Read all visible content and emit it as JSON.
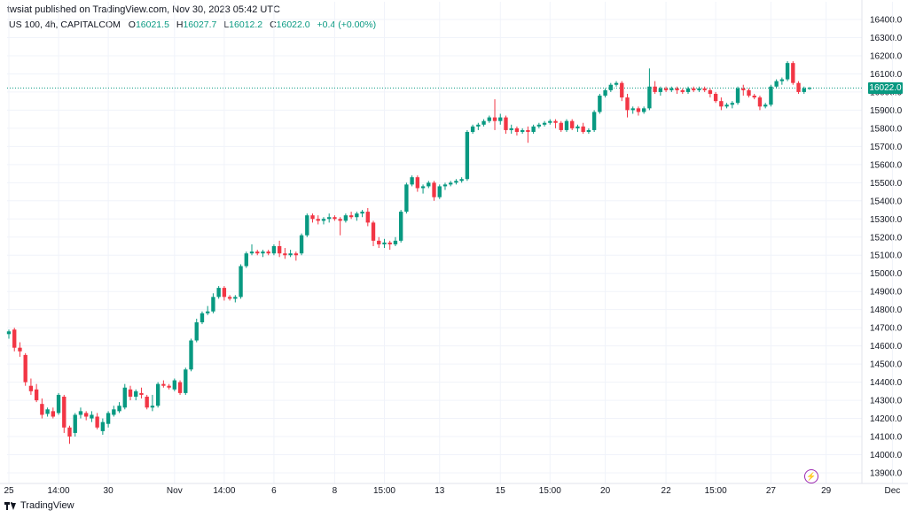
{
  "header": {
    "published": "twsiat published on TradingView.com, Nov 30, 2023 05:42 UTC"
  },
  "legend": {
    "symbol": "US 100, 4h, CAPITALCOM",
    "o_label": "O",
    "o_value": "16021.5",
    "h_label": "H",
    "h_value": "16027.7",
    "l_label": "L",
    "l_value": "16012.2",
    "c_label": "C",
    "c_value": "16022.0",
    "change": "+0.4 (+0.00%)"
  },
  "price_tag": "16022.0",
  "footer": {
    "brand": "TradingView",
    "flash_icon": "lightning-icon"
  },
  "colors": {
    "up": "#089981",
    "down": "#f23645",
    "grid": "#f0f3fa",
    "axis_text": "#131722"
  },
  "chart_data": {
    "type": "candlestick",
    "y_axis": {
      "min": 13850,
      "max": 16450,
      "ticks": [
        16400,
        16300,
        16200,
        16100,
        16000,
        15900,
        15800,
        15700,
        15600,
        15500,
        15400,
        15300,
        15200,
        15100,
        15000,
        14900,
        14800,
        14700,
        14600,
        14500,
        14400,
        14300,
        14200,
        14100,
        14000,
        13900
      ],
      "tick_labels": [
        "16400.0",
        "16300.0",
        "16200.0",
        "16100.0",
        "16000.0",
        "15900.0",
        "15800.0",
        "15700.0",
        "15600.0",
        "15500.0",
        "15400.0",
        "15300.0",
        "15200.0",
        "15100.0",
        "15000.0",
        "14900.0",
        "14800.0",
        "14700.0",
        "14600.0",
        "14500.0",
        "14400.0",
        "14300.0",
        "14200.0",
        "14100.0",
        "14000.0",
        "13900.0"
      ],
      "position": "right"
    },
    "x_axis": {
      "labels": [
        "25",
        "14:00",
        "30",
        "Nov",
        "14:00",
        "6",
        "8",
        "15:00",
        "13",
        "15",
        "15:00",
        "20",
        "22",
        "15:00",
        "27",
        "29",
        "Dec"
      ],
      "label_bar_index": [
        0,
        9,
        18,
        30,
        39,
        48,
        59,
        68,
        78,
        89,
        98,
        108,
        119,
        128,
        138,
        148,
        160
      ]
    },
    "last_price": 16022.0,
    "grid": true,
    "candles": [
      [
        14665,
        14690,
        14640,
        14680
      ],
      [
        14690,
        14700,
        14570,
        14590
      ],
      [
        14590,
        14620,
        14540,
        14570
      ],
      [
        14550,
        14560,
        14380,
        14400
      ],
      [
        14380,
        14420,
        14330,
        14350
      ],
      [
        14360,
        14390,
        14290,
        14300
      ],
      [
        14280,
        14310,
        14200,
        14220
      ],
      [
        14225,
        14260,
        14210,
        14250
      ],
      [
        14240,
        14260,
        14200,
        14210
      ],
      [
        14230,
        14340,
        14220,
        14330
      ],
      [
        14320,
        14330,
        14120,
        14150
      ],
      [
        14150,
        14160,
        14060,
        14100
      ],
      [
        14120,
        14230,
        14100,
        14220
      ],
      [
        14220,
        14260,
        14200,
        14240
      ],
      [
        14230,
        14240,
        14190,
        14210
      ],
      [
        14200,
        14240,
        14180,
        14220
      ],
      [
        14210,
        14230,
        14140,
        14150
      ],
      [
        14130,
        14200,
        14110,
        14180
      ],
      [
        14170,
        14240,
        14150,
        14230
      ],
      [
        14220,
        14270,
        14210,
        14250
      ],
      [
        14240,
        14290,
        14230,
        14270
      ],
      [
        14260,
        14390,
        14250,
        14370
      ],
      [
        14360,
        14380,
        14300,
        14320
      ],
      [
        14320,
        14360,
        14300,
        14350
      ],
      [
        14340,
        14370,
        14310,
        14330
      ],
      [
        14320,
        14330,
        14250,
        14260
      ],
      [
        14260,
        14330,
        14240,
        14270
      ],
      [
        14270,
        14400,
        14260,
        14390
      ],
      [
        14390,
        14410,
        14370,
        14380
      ],
      [
        14380,
        14390,
        14360,
        14370
      ],
      [
        14360,
        14420,
        14350,
        14410
      ],
      [
        14400,
        14410,
        14330,
        14340
      ],
      [
        14340,
        14480,
        14330,
        14470
      ],
      [
        14470,
        14640,
        14460,
        14630
      ],
      [
        14630,
        14750,
        14620,
        14730
      ],
      [
        14730,
        14790,
        14720,
        14780
      ],
      [
        14780,
        14820,
        14770,
        14790
      ],
      [
        14790,
        14890,
        14780,
        14870
      ],
      [
        14870,
        14930,
        14860,
        14920
      ],
      [
        14920,
        14930,
        14850,
        14870
      ],
      [
        14870,
        14880,
        14850,
        14860
      ],
      [
        14860,
        14880,
        14840,
        14870
      ],
      [
        14870,
        15050,
        14860,
        15040
      ],
      [
        15040,
        15120,
        15030,
        15110
      ],
      [
        15110,
        15160,
        15100,
        15120
      ],
      [
        15120,
        15130,
        15100,
        15110
      ],
      [
        15110,
        15130,
        15090,
        15120
      ],
      [
        15120,
        15130,
        15100,
        15110
      ],
      [
        15110,
        15160,
        15100,
        15150
      ],
      [
        15150,
        15180,
        15090,
        15110
      ],
      [
        15110,
        15140,
        15080,
        15100
      ],
      [
        15100,
        15130,
        15090,
        15110
      ],
      [
        15110,
        15120,
        15070,
        15100
      ],
      [
        15110,
        15220,
        15100,
        15210
      ],
      [
        15210,
        15330,
        15200,
        15320
      ],
      [
        15320,
        15330,
        15280,
        15300
      ],
      [
        15300,
        15320,
        15270,
        15290
      ],
      [
        15290,
        15310,
        15270,
        15300
      ],
      [
        15300,
        15330,
        15280,
        15310
      ],
      [
        15310,
        15320,
        15290,
        15300
      ],
      [
        15300,
        15310,
        15210,
        15290
      ],
      [
        15290,
        15330,
        15280,
        15320
      ],
      [
        15320,
        15340,
        15300,
        15310
      ],
      [
        15310,
        15340,
        15290,
        15330
      ],
      [
        15330,
        15350,
        15310,
        15340
      ],
      [
        15340,
        15360,
        15260,
        15280
      ],
      [
        15280,
        15290,
        15150,
        15180
      ],
      [
        15180,
        15200,
        15140,
        15160
      ],
      [
        15160,
        15190,
        15140,
        15170
      ],
      [
        15170,
        15180,
        15130,
        15160
      ],
      [
        15160,
        15200,
        15150,
        15180
      ],
      [
        15180,
        15350,
        15170,
        15340
      ],
      [
        15340,
        15500,
        15330,
        15490
      ],
      [
        15490,
        15540,
        15480,
        15530
      ],
      [
        15530,
        15540,
        15450,
        15470
      ],
      [
        15470,
        15490,
        15440,
        15480
      ],
      [
        15480,
        15510,
        15470,
        15500
      ],
      [
        15500,
        15510,
        15400,
        15420
      ],
      [
        15420,
        15490,
        15410,
        15480
      ],
      [
        15480,
        15500,
        15460,
        15490
      ],
      [
        15490,
        15510,
        15480,
        15500
      ],
      [
        15500,
        15520,
        15490,
        15510
      ],
      [
        15510,
        15530,
        15500,
        15520
      ],
      [
        15520,
        15790,
        15510,
        15780
      ],
      [
        15780,
        15820,
        15770,
        15810
      ],
      [
        15810,
        15830,
        15790,
        15820
      ],
      [
        15820,
        15850,
        15810,
        15840
      ],
      [
        15840,
        15870,
        15830,
        15860
      ],
      [
        15860,
        15960,
        15790,
        15840
      ],
      [
        15840,
        15880,
        15820,
        15860
      ],
      [
        15860,
        15870,
        15770,
        15790
      ],
      [
        15790,
        15820,
        15770,
        15800
      ],
      [
        15800,
        15810,
        15760,
        15780
      ],
      [
        15780,
        15800,
        15770,
        15790
      ],
      [
        15790,
        15810,
        15720,
        15780
      ],
      [
        15780,
        15820,
        15770,
        15810
      ],
      [
        15810,
        15830,
        15800,
        15820
      ],
      [
        15820,
        15840,
        15810,
        15830
      ],
      [
        15830,
        15850,
        15820,
        15840
      ],
      [
        15840,
        15850,
        15800,
        15830
      ],
      [
        15830,
        15840,
        15780,
        15790
      ],
      [
        15790,
        15850,
        15780,
        15840
      ],
      [
        15840,
        15850,
        15790,
        15800
      ],
      [
        15800,
        15820,
        15780,
        15810
      ],
      [
        15810,
        15830,
        15770,
        15780
      ],
      [
        15780,
        15800,
        15770,
        15790
      ],
      [
        15790,
        15900,
        15780,
        15890
      ],
      [
        15890,
        15990,
        15880,
        15980
      ],
      [
        15980,
        16020,
        15970,
        16010
      ],
      [
        16010,
        16050,
        16000,
        16040
      ],
      [
        16040,
        16060,
        16030,
        16050
      ],
      [
        16050,
        16060,
        15950,
        15970
      ],
      [
        15970,
        15990,
        15860,
        15900
      ],
      [
        15900,
        15920,
        15880,
        15910
      ],
      [
        15910,
        15920,
        15870,
        15890
      ],
      [
        15890,
        15920,
        15880,
        15910
      ],
      [
        15910,
        16130,
        15900,
        16030
      ],
      [
        16030,
        16060,
        15990,
        16000
      ],
      [
        16000,
        16030,
        15980,
        16020
      ],
      [
        16020,
        16030,
        16000,
        16010
      ],
      [
        16010,
        16030,
        16000,
        16020
      ],
      [
        16020,
        16030,
        15990,
        16010
      ],
      [
        16010,
        16020,
        15990,
        16000
      ],
      [
        16000,
        16030,
        15990,
        16020
      ],
      [
        16020,
        16030,
        16000,
        16010
      ],
      [
        16010,
        16030,
        16000,
        16020
      ],
      [
        16020,
        16030,
        16000,
        16010
      ],
      [
        16010,
        16020,
        15970,
        15990
      ],
      [
        15990,
        16000,
        15940,
        15950
      ],
      [
        15950,
        15970,
        15900,
        15920
      ],
      [
        15920,
        15940,
        15910,
        15930
      ],
      [
        15930,
        15950,
        15910,
        15940
      ],
      [
        15940,
        16030,
        15930,
        16020
      ],
      [
        16020,
        16040,
        15980,
        16010
      ],
      [
        16010,
        16020,
        15970,
        15980
      ],
      [
        15980,
        15990,
        15960,
        15970
      ],
      [
        15970,
        15980,
        15900,
        15920
      ],
      [
        15920,
        15940,
        15910,
        15930
      ],
      [
        15930,
        16040,
        15920,
        16030
      ],
      [
        16030,
        16070,
        16020,
        16060
      ],
      [
        16060,
        16080,
        16040,
        16070
      ],
      [
        16070,
        16170,
        16060,
        16160
      ],
      [
        16160,
        16170,
        16040,
        16050
      ],
      [
        16050,
        16060,
        15990,
        16000
      ],
      [
        16000,
        16030,
        15990,
        16020
      ],
      [
        16021.5,
        16027.7,
        16012.2,
        16022.0
      ]
    ]
  }
}
